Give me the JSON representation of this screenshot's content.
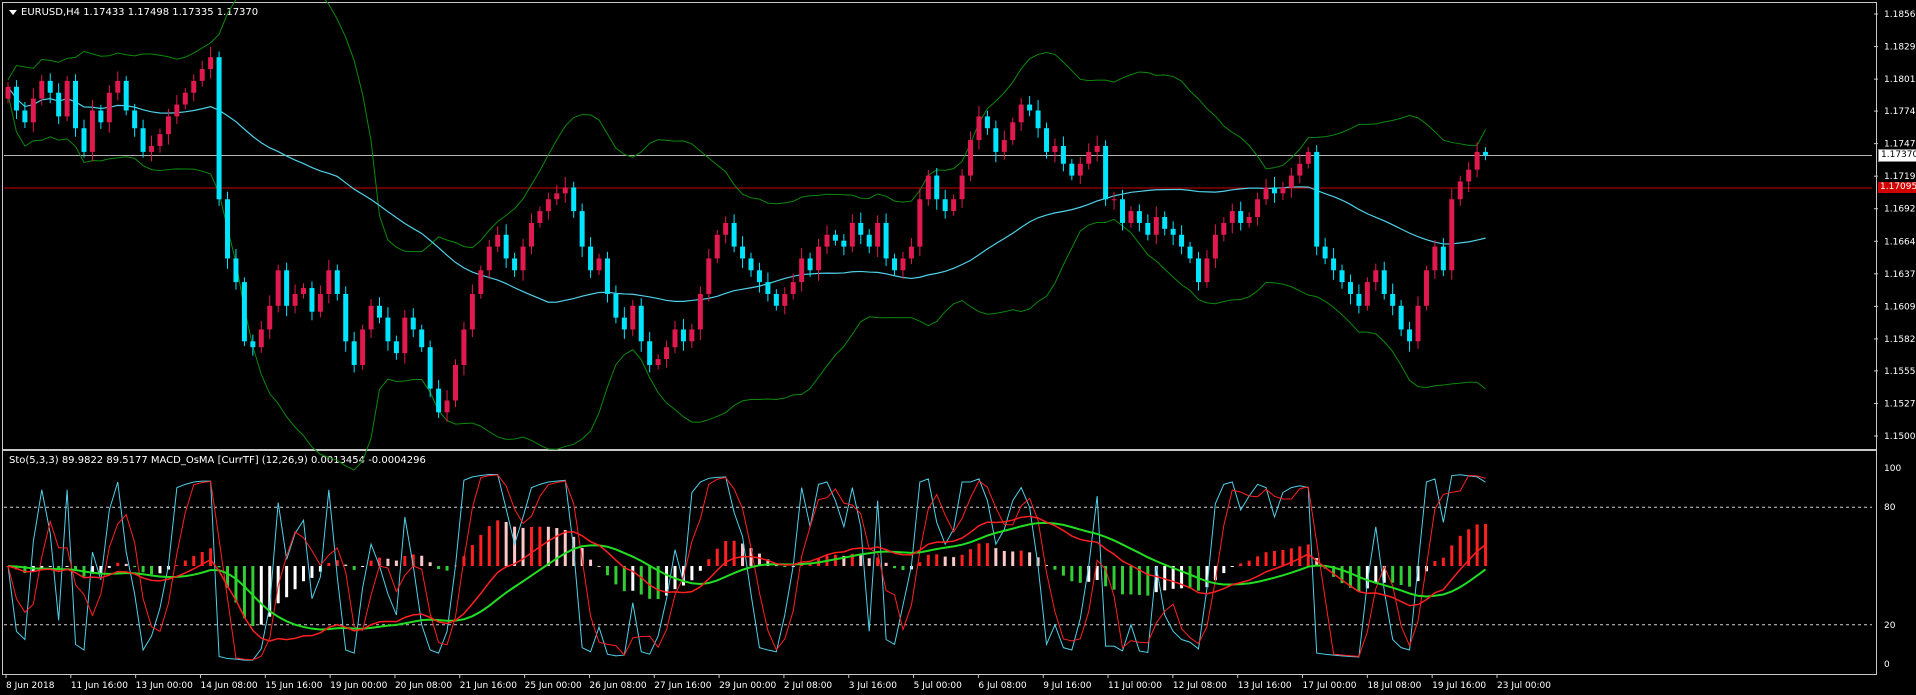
{
  "main_header": "EURUSD,H4  1.17433 1.17498 1.17335 1.17370",
  "sub_header": "Sto(5,3,3) 89.9822 89.5177  MACD_OsMA [CurrTF] (12,26,9) 0.0013454 -0.0004296",
  "price_axis": [
    "1.18565",
    "1.18290",
    "1.18015",
    "1.17745",
    "1.17470",
    "1.17195",
    "1.16920",
    "1.16645",
    "1.16370",
    "1.16095",
    "1.15820",
    "1.15550",
    "1.15275",
    "1.15000"
  ],
  "current_price_tag": "1.17370",
  "line_price_tag": "1.17095",
  "osc_axis": [
    "100",
    "80",
    "20",
    "0"
  ],
  "time_axis": [
    "8 Jun 2018",
    "11 Jun 16:00",
    "13 Jun 00:00",
    "14 Jun 08:00",
    "15 Jun 16:00",
    "19 Jun 00:00",
    "20 Jun 08:00",
    "21 Jun 16:00",
    "25 Jun 00:00",
    "26 Jun 08:00",
    "27 Jun 16:00",
    "29 Jun 00:00",
    "2 Jul 08:00",
    "3 Jul 16:00",
    "5 Jul 00:00",
    "6 Jul 08:00",
    "9 Jul 16:00",
    "11 Jul 00:00",
    "12 Jul 08:00",
    "13 Jul 16:00",
    "17 Jul 00:00",
    "18 Jul 08:00",
    "19 Jul 16:00",
    "23 Jul 00:00"
  ],
  "colors": {
    "bull_candle": "#e0194f",
    "bear_candle": "#00e5ff",
    "ma_line": "#4fd0e8",
    "bands": "#0a8a0a",
    "hline_red": "#d00000",
    "hline_grey": "#b4b4b4",
    "macd_pos_up": "#ff2020",
    "macd_pos_down": "#ffc8c8",
    "macd_neg_down": "#32cd32",
    "macd_neg_up": "#ffffff",
    "sig_green": "#22dd22",
    "sig_red": "#ff2020",
    "sto_main": "#4fd0e8",
    "sto_signal": "#ff2020"
  },
  "chart_data": {
    "type": "candlestick",
    "symbol": "EURUSD",
    "timeframe": "H4",
    "ohlc_last": {
      "open": 1.17433,
      "high": 1.17498,
      "low": 1.17335,
      "close": 1.1737
    },
    "ylim": [
      1.15,
      1.18565
    ],
    "closes": [
      1.1795,
      1.1775,
      1.1765,
      1.1785,
      1.18,
      1.179,
      1.177,
      1.18,
      1.176,
      1.174,
      1.1775,
      1.1765,
      1.179,
      1.18,
      1.1775,
      1.176,
      1.174,
      1.1745,
      1.1755,
      1.177,
      1.178,
      1.179,
      1.18,
      1.181,
      1.182,
      1.17,
      1.165,
      1.163,
      1.158,
      1.1575,
      1.159,
      1.161,
      1.164,
      1.161,
      1.162,
      1.1625,
      1.1605,
      1.162,
      1.164,
      1.162,
      1.158,
      1.156,
      1.159,
      1.161,
      1.16,
      1.158,
      1.157,
      1.16,
      1.159,
      1.1575,
      1.154,
      1.152,
      1.153,
      1.156,
      1.159,
      1.162,
      1.164,
      1.166,
      1.167,
      1.165,
      1.164,
      1.166,
      1.168,
      1.169,
      1.17,
      1.1705,
      1.171,
      1.169,
      1.166,
      1.164,
      1.165,
      1.162,
      1.16,
      1.159,
      1.161,
      1.158,
      1.156,
      1.1565,
      1.1575,
      1.159,
      1.158,
      1.159,
      1.162,
      1.165,
      1.167,
      1.168,
      1.166,
      1.165,
      1.164,
      1.163,
      1.162,
      1.161,
      1.162,
      1.163,
      1.165,
      1.164,
      1.166,
      1.167,
      1.1665,
      1.166,
      1.168,
      1.167,
      1.166,
      1.168,
      1.165,
      1.164,
      1.165,
      1.166,
      1.17,
      1.172,
      1.17,
      1.169,
      1.17,
      1.172,
      1.175,
      1.177,
      1.176,
      1.174,
      1.175,
      1.1765,
      1.178,
      1.1775,
      1.176,
      1.174,
      1.1745,
      1.173,
      1.172,
      1.173,
      1.174,
      1.1745,
      1.17,
      1.17,
      1.168,
      1.169,
      1.168,
      1.167,
      1.1685,
      1.1675,
      1.167,
      1.166,
      1.165,
      1.163,
      1.165,
      1.167,
      1.168,
      1.169,
      1.168,
      1.1685,
      1.17,
      1.171,
      1.1705,
      1.171,
      1.172,
      1.173,
      1.174,
      1.166,
      1.165,
      1.164,
      1.163,
      1.162,
      1.161,
      1.163,
      1.164,
      1.162,
      1.161,
      1.159,
      1.158,
      1.161,
      1.164,
      1.166,
      1.164,
      1.17,
      1.1715,
      1.1725,
      1.174,
      1.1737
    ]
  }
}
